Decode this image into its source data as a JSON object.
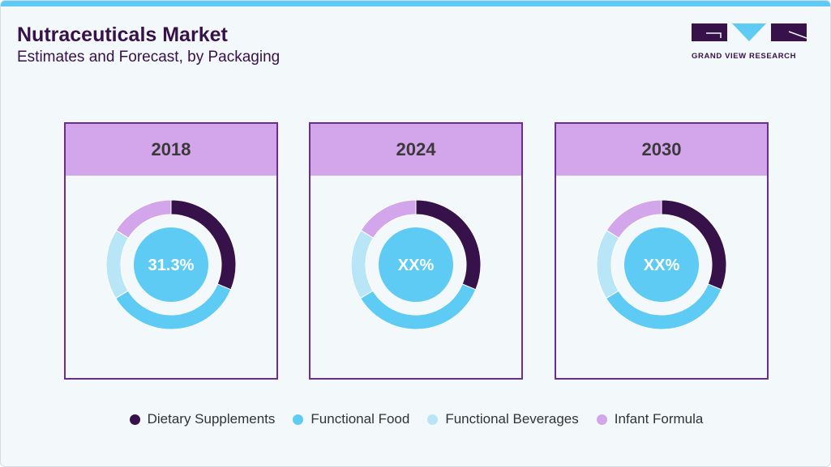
{
  "header": {
    "title": "Nutraceuticals Market",
    "subtitle": "Estimates and Forecast, by Packaging"
  },
  "logo": {
    "text": "GRAND VIEW RESEARCH"
  },
  "chart_data": [
    {
      "type": "pie",
      "title": "2018",
      "center_label": "31.3%",
      "categories": [
        "Dietary Supplements",
        "Functional Food",
        "Functional Beverages",
        "Infant Formula"
      ],
      "values": [
        31.3,
        35,
        17.6,
        16.1
      ]
    },
    {
      "type": "pie",
      "title": "2024",
      "center_label": "XX%",
      "categories": [
        "Dietary Supplements",
        "Functional Food",
        "Functional Beverages",
        "Infant Formula"
      ],
      "values": [
        31.3,
        35,
        17.6,
        16.1
      ]
    },
    {
      "type": "pie",
      "title": "2030",
      "center_label": "XX%",
      "categories": [
        "Dietary Supplements",
        "Functional Food",
        "Functional Beverages",
        "Infant Formula"
      ],
      "values": [
        31.3,
        35,
        17.6,
        16.1
      ]
    }
  ],
  "legend": [
    {
      "label": "Dietary Supplements",
      "color": "#37114a"
    },
    {
      "label": "Functional Food",
      "color": "#5ecbf5"
    },
    {
      "label": "Functional Beverages",
      "color": "#b8e6f7"
    },
    {
      "label": "Infant Formula",
      "color": "#d3a5ea"
    }
  ],
  "center_color": "#5ecbf5"
}
